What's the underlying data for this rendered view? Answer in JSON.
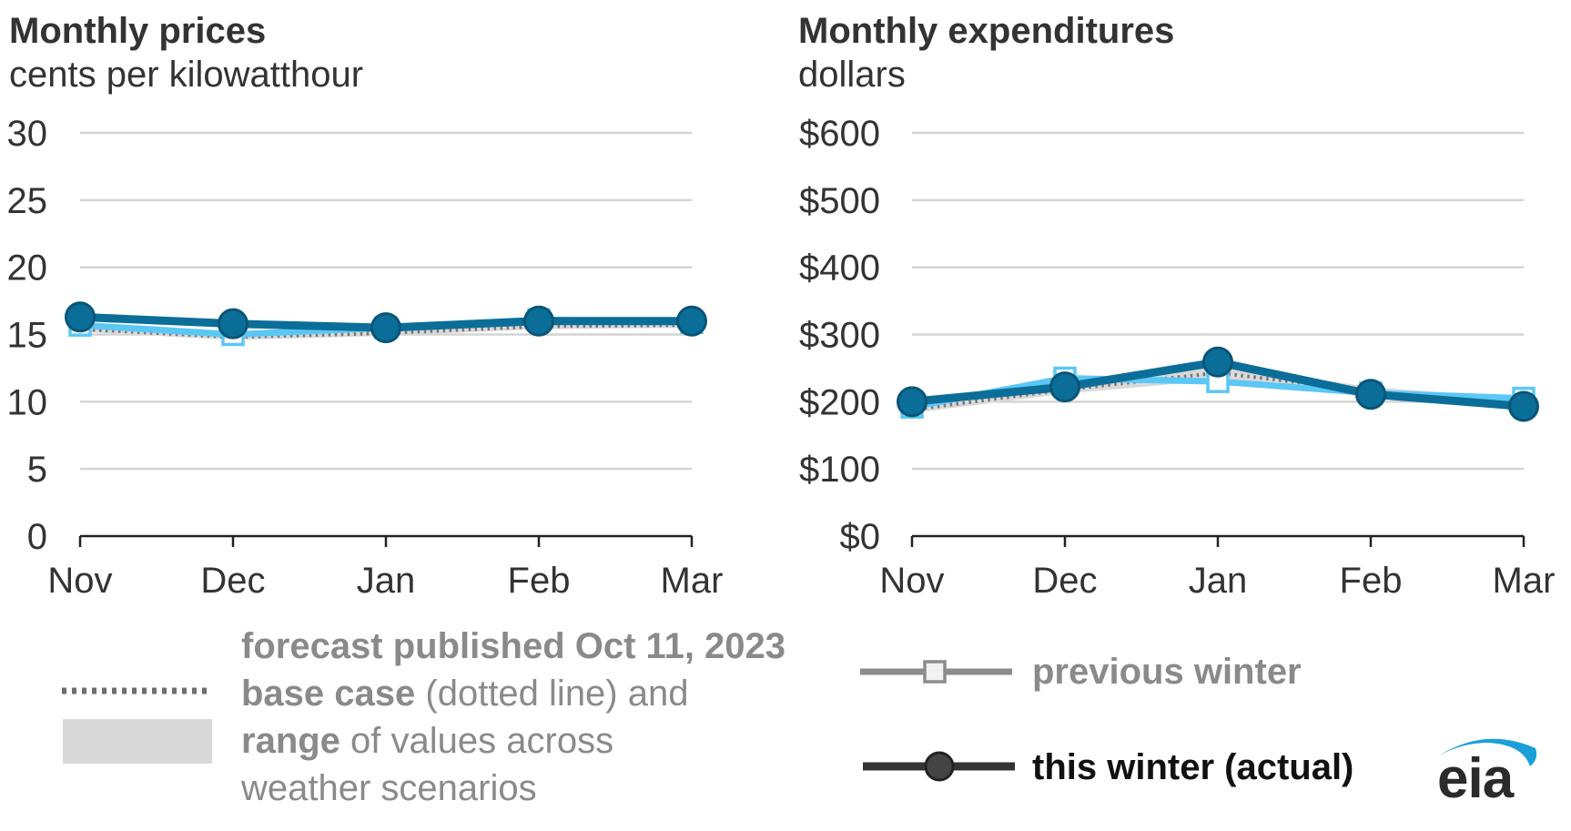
{
  "colors": {
    "this_winter": "#0b6e99",
    "this_winter_edge": "#0a5576",
    "previous_winter": "#5bc7f5",
    "base_case": "#777777",
    "range": "#d9d9d9",
    "grid": "#d4d4d4",
    "text": "#333333",
    "legend_text": "#8a8a8a",
    "eia_text": "#2b2b2b",
    "eia_swoosh": "#1a9fd9"
  },
  "chart_data": [
    {
      "type": "line",
      "title": "Monthly prices",
      "subtitle": "cents per kilowatthour",
      "categories": [
        "Nov",
        "Dec",
        "Jan",
        "Feb",
        "Mar"
      ],
      "y_ticks": [
        "0",
        "5",
        "10",
        "15",
        "20",
        "25",
        "30"
      ],
      "ylim": [
        0,
        30
      ],
      "grid": true,
      "series": [
        {
          "name": "previous winter",
          "values": [
            15.7,
            15.0,
            15.5,
            16.1,
            15.9
          ]
        },
        {
          "name": "this winter (actual)",
          "values": [
            16.3,
            15.8,
            15.5,
            16.0,
            16.0
          ]
        },
        {
          "name": "base case",
          "values": [
            15.4,
            14.8,
            15.1,
            15.6,
            15.7
          ]
        }
      ],
      "range": {
        "low": [
          15.2,
          14.6,
          14.9,
          15.4,
          15.5
        ],
        "high": [
          15.8,
          15.2,
          15.4,
          15.9,
          15.9
        ]
      }
    },
    {
      "type": "line",
      "title": "Monthly expenditures",
      "subtitle": "dollars",
      "categories": [
        "Nov",
        "Dec",
        "Jan",
        "Feb",
        "Mar"
      ],
      "y_ticks": [
        "$0",
        "$100",
        "$200",
        "$300",
        "$400",
        "$500",
        "$600"
      ],
      "ylim": [
        0,
        600
      ],
      "grid": true,
      "series": [
        {
          "name": "previous winter",
          "values": [
            192,
            235,
            230,
            213,
            205
          ]
        },
        {
          "name": "this winter (actual)",
          "values": [
            200,
            222,
            259,
            211,
            193
          ]
        },
        {
          "name": "base case",
          "values": [
            188,
            218,
            243,
            216,
            199
          ]
        }
      ],
      "range": {
        "low": [
          183,
          212,
          232,
          208,
          194
        ],
        "high": [
          194,
          226,
          254,
          222,
          204
        ]
      }
    }
  ],
  "legend": {
    "forecast_header": "forecast published Oct 11, 2023",
    "base_case_bold": "base case",
    "base_case_rest": " (dotted line) and",
    "range_bold": "range",
    "range_rest": " of values across",
    "range_line3": "weather scenarios",
    "previous_winter": "previous winter",
    "this_winter": "this winter (actual)"
  },
  "logo": {
    "text": "eia"
  }
}
